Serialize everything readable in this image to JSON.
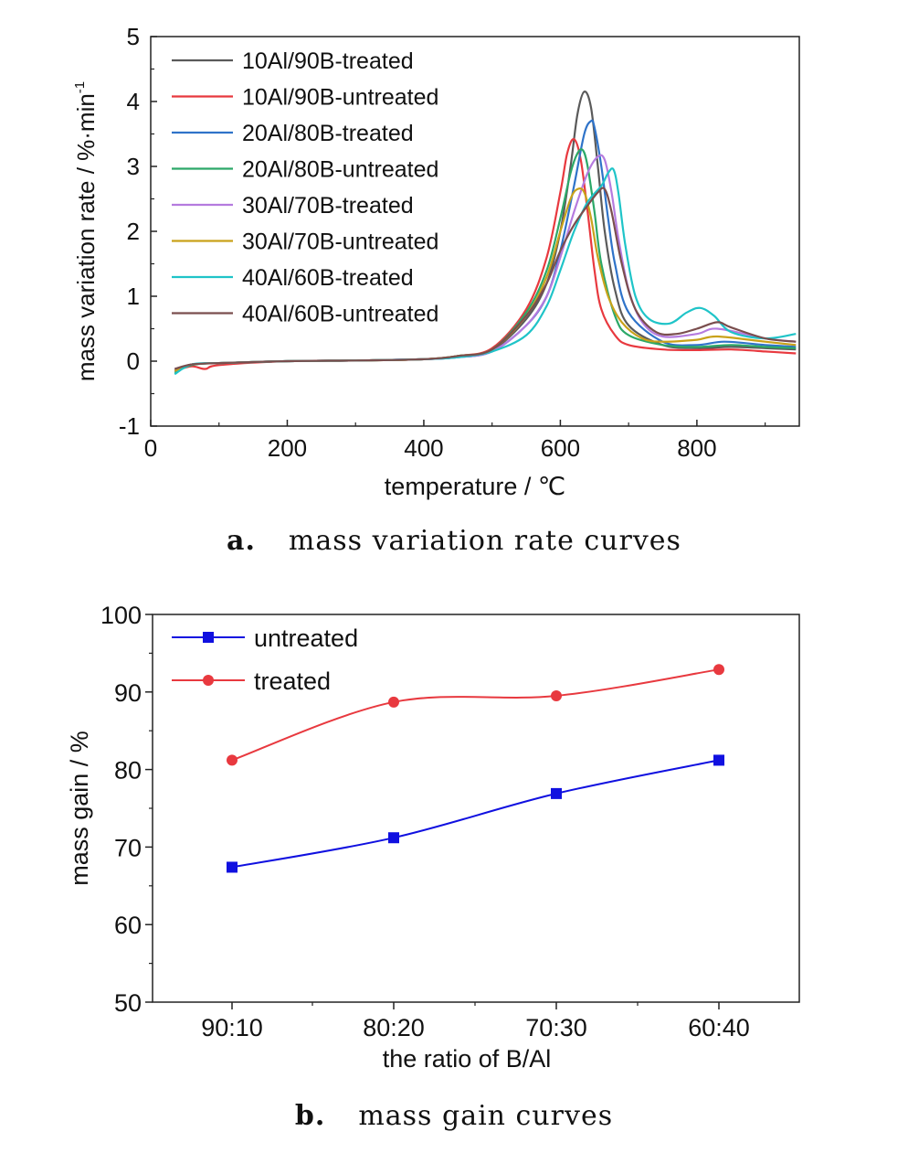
{
  "chart_data": [
    {
      "type": "line",
      "xlabel": "temperature / ℃",
      "ylabel": "mass variation rate / %·min",
      "ylabel_sup": "-1",
      "xlim": [
        0,
        950
      ],
      "ylim": [
        -1,
        5
      ],
      "xticks": [
        0,
        200,
        400,
        600,
        800
      ],
      "yticks": [
        -1,
        0,
        1,
        2,
        3,
        4,
        5
      ],
      "legend": "top-left",
      "series": [
        {
          "name": "10Al/90B-treated",
          "color": "#5a5a5a",
          "x": [
            35,
            60,
            100,
            200,
            300,
            400,
            450,
            500,
            550,
            580,
            600,
            615,
            625,
            635,
            645,
            655,
            665,
            680,
            700,
            750,
            800,
            850,
            900,
            945
          ],
          "y": [
            -0.15,
            -0.05,
            -0.03,
            0.0,
            0.01,
            0.03,
            0.07,
            0.17,
            0.65,
            1.2,
            2.0,
            3.0,
            3.8,
            4.15,
            3.9,
            3.0,
            2.0,
            1.1,
            0.55,
            0.25,
            0.2,
            0.22,
            0.2,
            0.18
          ]
        },
        {
          "name": "10Al/90B-untreated",
          "color": "#e8393f",
          "x": [
            35,
            60,
            80,
            100,
            200,
            300,
            400,
            450,
            500,
            550,
            580,
            600,
            610,
            620,
            630,
            640,
            650,
            660,
            680,
            700,
            750,
            800,
            850,
            900,
            945
          ],
          "y": [
            -0.15,
            -0.08,
            -0.12,
            -0.06,
            0.0,
            0.01,
            0.03,
            0.08,
            0.2,
            0.8,
            1.6,
            2.6,
            3.2,
            3.42,
            3.1,
            2.3,
            1.4,
            0.8,
            0.4,
            0.25,
            0.18,
            0.17,
            0.18,
            0.15,
            0.12
          ]
        },
        {
          "name": "20Al/80B-treated",
          "color": "#2f73c9",
          "x": [
            35,
            60,
            100,
            200,
            300,
            400,
            450,
            500,
            550,
            580,
            600,
            620,
            635,
            645,
            650,
            660,
            670,
            680,
            700,
            750,
            800,
            840,
            900,
            945
          ],
          "y": [
            -0.15,
            -0.05,
            -0.03,
            0.0,
            0.01,
            0.03,
            0.06,
            0.15,
            0.55,
            1.0,
            1.7,
            2.7,
            3.5,
            3.7,
            3.6,
            3.0,
            2.2,
            1.5,
            0.75,
            0.3,
            0.25,
            0.3,
            0.25,
            0.22
          ]
        },
        {
          "name": "20Al/80B-untreated",
          "color": "#2ca868",
          "x": [
            35,
            60,
            100,
            200,
            300,
            400,
            450,
            500,
            550,
            580,
            600,
            615,
            625,
            633,
            640,
            650,
            660,
            680,
            700,
            750,
            800,
            850,
            900,
            945
          ],
          "y": [
            -0.18,
            -0.06,
            -0.03,
            0.0,
            0.01,
            0.03,
            0.08,
            0.18,
            0.75,
            1.4,
            2.2,
            2.9,
            3.2,
            3.25,
            3.0,
            2.3,
            1.5,
            0.7,
            0.4,
            0.25,
            0.22,
            0.25,
            0.22,
            0.2
          ]
        },
        {
          "name": "30Al/70B-treated",
          "color": "#b57bdf",
          "x": [
            35,
            60,
            100,
            200,
            300,
            400,
            450,
            500,
            550,
            580,
            600,
            620,
            640,
            655,
            665,
            675,
            685,
            700,
            720,
            750,
            800,
            830,
            900,
            945
          ],
          "y": [
            -0.15,
            -0.05,
            -0.03,
            0.0,
            0.01,
            0.03,
            0.06,
            0.15,
            0.55,
            1.0,
            1.6,
            2.3,
            2.9,
            3.15,
            3.1,
            2.6,
            1.9,
            1.1,
            0.6,
            0.38,
            0.42,
            0.5,
            0.35,
            0.3
          ]
        },
        {
          "name": "30Al/70B-untreated",
          "color": "#c9a21a",
          "x": [
            35,
            60,
            100,
            200,
            300,
            400,
            450,
            500,
            550,
            580,
            600,
            615,
            625,
            635,
            645,
            655,
            670,
            690,
            720,
            750,
            800,
            830,
            900,
            945
          ],
          "y": [
            -0.15,
            -0.05,
            -0.03,
            0.0,
            0.01,
            0.03,
            0.08,
            0.18,
            0.7,
            1.3,
            2.0,
            2.5,
            2.65,
            2.6,
            2.2,
            1.6,
            1.0,
            0.6,
            0.35,
            0.3,
            0.33,
            0.38,
            0.3,
            0.25
          ]
        },
        {
          "name": "40Al/60B-treated",
          "color": "#1fc4c8",
          "x": [
            35,
            60,
            100,
            200,
            300,
            400,
            450,
            500,
            550,
            580,
            600,
            620,
            640,
            660,
            670,
            678,
            685,
            695,
            710,
            730,
            760,
            785,
            805,
            825,
            850,
            900,
            945
          ],
          "y": [
            -0.2,
            -0.05,
            -0.03,
            0.0,
            0.01,
            0.03,
            0.06,
            0.15,
            0.4,
            0.85,
            1.4,
            2.0,
            2.45,
            2.7,
            2.9,
            2.95,
            2.6,
            1.8,
            1.0,
            0.65,
            0.58,
            0.75,
            0.82,
            0.7,
            0.45,
            0.35,
            0.42
          ]
        },
        {
          "name": "40Al/60B-untreated",
          "color": "#7a4e4e",
          "x": [
            35,
            60,
            100,
            200,
            300,
            400,
            450,
            500,
            550,
            580,
            600,
            620,
            640,
            655,
            665,
            675,
            690,
            710,
            740,
            770,
            800,
            830,
            850,
            900,
            945
          ],
          "y": [
            -0.12,
            -0.05,
            -0.03,
            0.0,
            0.01,
            0.03,
            0.08,
            0.18,
            0.7,
            1.2,
            1.7,
            2.1,
            2.4,
            2.6,
            2.65,
            2.3,
            1.5,
            0.8,
            0.45,
            0.42,
            0.5,
            0.6,
            0.52,
            0.35,
            0.3
          ]
        }
      ]
    },
    {
      "type": "line",
      "xlabel": "the ratio of B/Al",
      "ylabel": "mass gain / %",
      "categories": [
        "90:10",
        "80:20",
        "70:30",
        "60:40"
      ],
      "ylim": [
        50,
        100
      ],
      "yticks": [
        50,
        60,
        70,
        80,
        90,
        100
      ],
      "legend": "top-left",
      "series": [
        {
          "name": "untreated",
          "color": "#1010e0",
          "marker": "square",
          "values": [
            67.4,
            71.2,
            76.9,
            81.2
          ]
        },
        {
          "name": "treated",
          "color": "#e8393f",
          "marker": "circle",
          "values": [
            81.2,
            88.7,
            89.5,
            92.9
          ]
        }
      ]
    }
  ],
  "captions": {
    "a_label": "a.",
    "a_text": "mass variation rate curves",
    "b_label": "b.",
    "b_text": "mass gain curves"
  }
}
